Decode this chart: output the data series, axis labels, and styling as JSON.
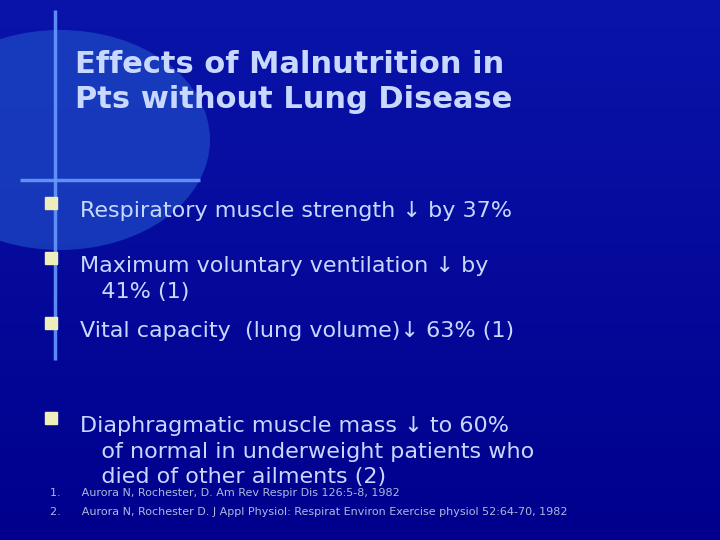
{
  "title_line1": "Effects of Malnutrition in",
  "title_line2": "Pts without Lung Disease",
  "bg_color": "#0000AA",
  "bg_gradient_top": "#0000CC",
  "bg_gradient_mid": "#1133CC",
  "title_color": "#C8D8FF",
  "bullet_color": "#C8D8FF",
  "bullet_square_color": "#EEEEBB",
  "accent_color": "#4488FF",
  "bullet_points": [
    "Respiratory muscle strength ↓ by 37%",
    "Maximum voluntary ventilation ↓ by\n   41% (1)",
    "Vital capacity  (lung volume)↓ 63% (1)",
    "Diaphragmatic muscle mass ↓ to 60%\n   of normal in underweight patients who\n   died of other ailments (2)"
  ],
  "footnote1": "1.      Aurora N, Rochester, D. Am Rev Respir Dis 126:5-8, 1982",
  "footnote2": "2.      Aurora N, Rochester D. J Appl Physiol: Respirat Environ Exercise physiol 52:64-70, 1982",
  "footnote_color": "#AABBDD",
  "title_fontsize": 22,
  "bullet_fontsize": 16,
  "footnote_fontsize": 8
}
